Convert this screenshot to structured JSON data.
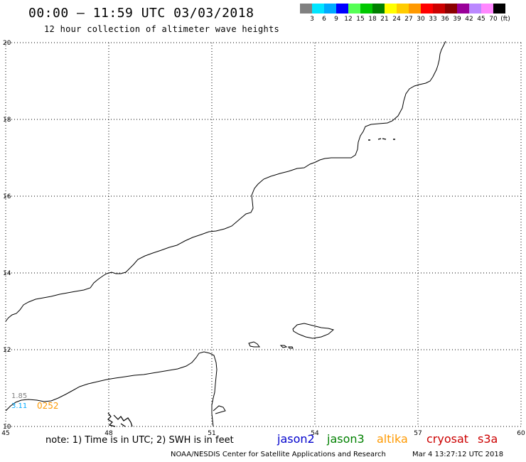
{
  "header": {
    "title": "00:00 – 11:59 UTC 03/03/2018",
    "subtitle": "12 hour collection of altimeter wave heights"
  },
  "color_scale": {
    "swatches": [
      "#808080",
      "#00e5ff",
      "#00aaff",
      "#0000ff",
      "#55ff55",
      "#00c800",
      "#008000",
      "#ffff00",
      "#ffcc00",
      "#ff9900",
      "#ff0000",
      "#cc0000",
      "#8b0000",
      "#990099",
      "#bb88ff",
      "#ff88ff",
      "#000000"
    ],
    "labels": [
      "3",
      "6",
      "9",
      "12",
      "15",
      "18",
      "21",
      "24",
      "27",
      "30",
      "33",
      "36",
      "39",
      "42",
      "45",
      "70",
      "(ft)"
    ]
  },
  "map": {
    "lon_ticks": [
      "45",
      "48",
      "51",
      "54",
      "57",
      "60"
    ],
    "lat_ticks": [
      "20",
      "18",
      "16",
      "14",
      "12",
      "10"
    ],
    "lon_range": [
      45,
      60
    ],
    "lat_range": [
      10,
      20
    ],
    "grid": true,
    "observations": [
      {
        "value": "1.85",
        "color": "#808080"
      },
      {
        "value": "3.11",
        "color": "#00aaff"
      },
      {
        "value": "0252",
        "color": "#ff9900"
      }
    ]
  },
  "footer": {
    "note": "note: 1) Time is in UTC; 2) SWH is in feet",
    "satellites": [
      {
        "name": "jason2",
        "color": "#0000cc"
      },
      {
        "name": "jason3",
        "color": "#008000"
      },
      {
        "name": "altika",
        "color": "#ff9900"
      },
      {
        "name": "cryosat",
        "color": "#cc0000"
      },
      {
        "name": "s3a",
        "color": "#cc0000"
      }
    ],
    "credit": "NOAA/NESDIS Center for Satellite Applications and Research",
    "timestamp": "Mar  4 13:27:12 UTC 2018"
  }
}
